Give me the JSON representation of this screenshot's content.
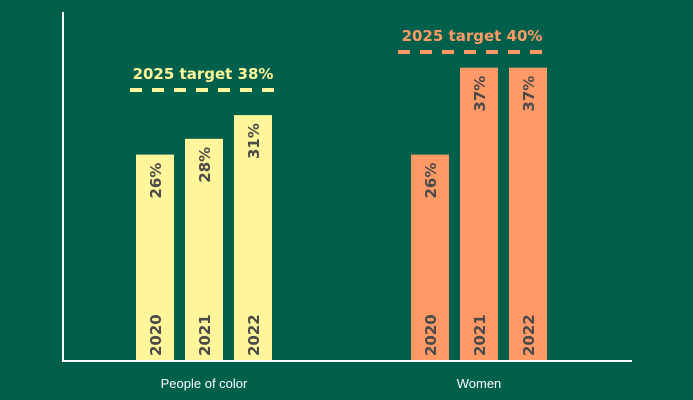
{
  "colors": {
    "background": "#00604b",
    "people_of_color": "#fff59a",
    "women": "#ff9a66",
    "bar_text": "#4a4a4a",
    "axis": "#ffffff"
  },
  "chart_data": {
    "type": "bar",
    "title": "",
    "xlabel": "",
    "ylabel": "",
    "unit": "%",
    "ylim": [
      0,
      45
    ],
    "grid": false,
    "groups": [
      {
        "name": "People of color",
        "color": "#fff59a",
        "categories": [
          "2020",
          "2021",
          "2022"
        ],
        "values": [
          26,
          28,
          31
        ],
        "labels": [
          "26%",
          "28%",
          "31%"
        ],
        "target": {
          "label": "2025 target 38%",
          "value": 38
        }
      },
      {
        "name": "Women",
        "color": "#ff9a66",
        "categories": [
          "2020",
          "2021",
          "2022"
        ],
        "values": [
          26,
          37,
          37
        ],
        "labels": [
          "26%",
          "37%",
          "37%"
        ],
        "target": {
          "label": "2025 target 40%",
          "value": 40
        }
      }
    ]
  }
}
